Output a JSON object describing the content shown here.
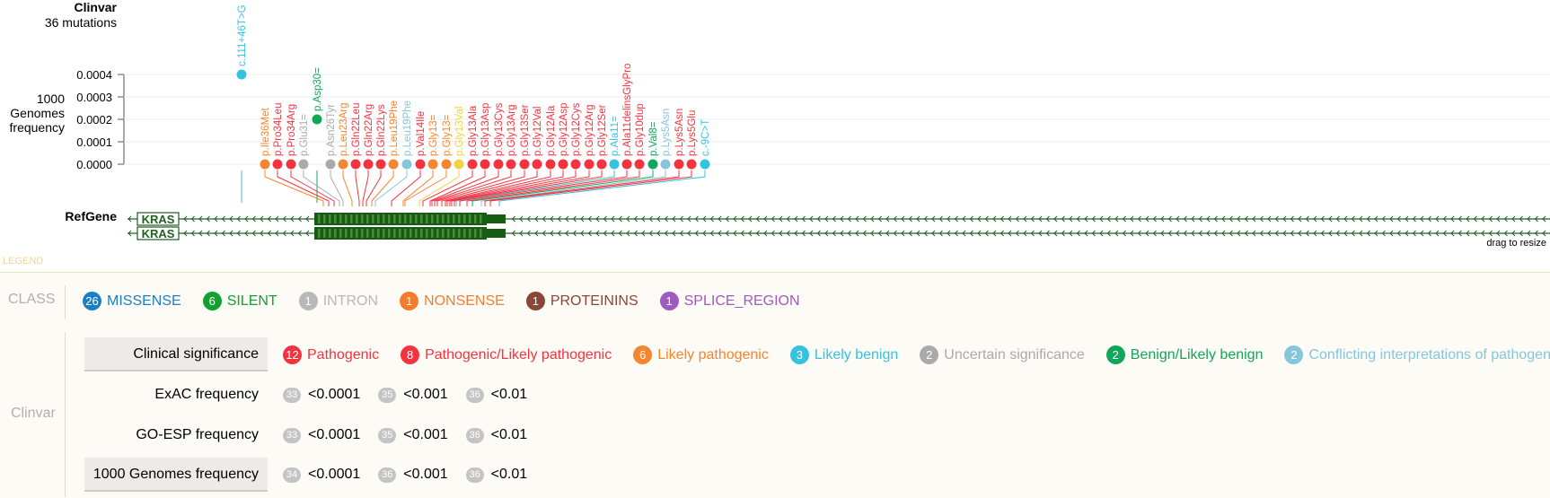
{
  "clinvar_track": {
    "title": "Clinvar",
    "subtitle": "36 mutations"
  },
  "frequency_axis": {
    "label_lines": [
      "1000",
      "Genomes",
      "frequency"
    ],
    "ticks": [
      "0.0004",
      "0.0003",
      "0.0002",
      "0.0001",
      "0.0000"
    ]
  },
  "refgene_track": {
    "title": "RefGene",
    "gene_name": "KRAS",
    "drag_hint": "drag to resize"
  },
  "legend_tag": "LEGEND",
  "colors": {
    "pathogenic": "#f5333f",
    "likely_pathogenic": "#f5852f",
    "likely_benign": "#35c2e0",
    "uncertain": "#aaaaaa",
    "benign_likely_benign": "#12a65a",
    "conflicting": "#87c6d9",
    "exon": "#155d12",
    "exon_pattern": "#4a8a3a",
    "gene_line": "#1f5f20"
  },
  "mutations": [
    {
      "label": "c.111+46T>G",
      "color": "#35c2e0",
      "freq": "0.0004"
    },
    {
      "label": "p.Asp30=",
      "color": "#12a65a",
      "freq": "0.0002"
    },
    {
      "label": "p.Ile36Met",
      "color": "#f5852f",
      "freq": "0.0000"
    },
    {
      "label": "p.Pro34Leu",
      "color": "#f5333f",
      "freq": "0.0000"
    },
    {
      "label": "p.Pro34Arg",
      "color": "#f5333f",
      "freq": "0.0000"
    },
    {
      "label": "p.Glu31=",
      "color": "#aaaaaa",
      "freq": "0.0000"
    },
    {
      "label": "p.Asn26Tyr",
      "color": "#aaaaaa",
      "freq": "0.0000"
    },
    {
      "label": "p.Leu23Arg",
      "color": "#f5852f",
      "freq": "0.0000"
    },
    {
      "label": "p.Gln22Leu",
      "color": "#f5333f",
      "freq": "0.0000"
    },
    {
      "label": "p.Gln22Arg",
      "color": "#f5333f",
      "freq": "0.0000"
    },
    {
      "label": "p.Gln22Lys",
      "color": "#f5333f",
      "freq": "0.0000"
    },
    {
      "label": "p.Leu19Phe",
      "color": "#f5852f",
      "freq": "0.0000"
    },
    {
      "label": "p.Leu19Phe",
      "color": "#87c6d9",
      "freq": "0.0000"
    },
    {
      "label": "p.Val14Ile",
      "color": "#f5333f",
      "freq": "0.0000"
    },
    {
      "label": "p.Gly13=",
      "color": "#f5852f",
      "freq": "0.0000"
    },
    {
      "label": "p.Gly13=",
      "color": "#f5852f",
      "freq": "0.0000"
    },
    {
      "label": "p.Gly13Val",
      "color": "#f5d142",
      "freq": "0.0000"
    },
    {
      "label": "p.Gly13Ala",
      "color": "#f5333f",
      "freq": "0.0000"
    },
    {
      "label": "p.Gly13Asp",
      "color": "#f5333f",
      "freq": "0.0000"
    },
    {
      "label": "p.Gly13Cys",
      "color": "#f5333f",
      "freq": "0.0000"
    },
    {
      "label": "p.Gly13Arg",
      "color": "#f5333f",
      "freq": "0.0000"
    },
    {
      "label": "p.Gly13Ser",
      "color": "#f5333f",
      "freq": "0.0000"
    },
    {
      "label": "p.Gly12Val",
      "color": "#f5333f",
      "freq": "0.0000"
    },
    {
      "label": "p.Gly12Ala",
      "color": "#f5333f",
      "freq": "0.0000"
    },
    {
      "label": "p.Gly12Asp",
      "color": "#f5333f",
      "freq": "0.0000"
    },
    {
      "label": "p.Gly12Cys",
      "color": "#f5333f",
      "freq": "0.0000"
    },
    {
      "label": "p.Gly12Arg",
      "color": "#f5333f",
      "freq": "0.0000"
    },
    {
      "label": "p.Gly12Ser",
      "color": "#f5333f",
      "freq": "0.0000"
    },
    {
      "label": "p.Ala11=",
      "color": "#35c2e0",
      "freq": "0.0000"
    },
    {
      "label": "p.Ala11delinsGlyPro",
      "color": "#f5333f",
      "freq": "0.0000"
    },
    {
      "label": "p.Gly10dup",
      "color": "#f5333f",
      "freq": "0.0000"
    },
    {
      "label": "p.Val8=",
      "color": "#12a65a",
      "freq": "0.0000"
    },
    {
      "label": "p.Lys5Asn",
      "color": "#87c6d9",
      "freq": "0.0000"
    },
    {
      "label": "p.Lys5Asn",
      "color": "#f5333f",
      "freq": "0.0000"
    },
    {
      "label": "p.Lys5Glu",
      "color": "#f5333f",
      "freq": "0.0000"
    },
    {
      "label": "c.-9C>T",
      "color": "#35c2e0",
      "freq": "0.0000"
    }
  ],
  "legend": {
    "class_label": "CLASS",
    "classes": [
      {
        "count": "26",
        "label": "MISSENSE",
        "color": "#1d7fc3"
      },
      {
        "count": "6",
        "label": "SILENT",
        "color": "#12a12f"
      },
      {
        "count": "1",
        "label": "INTRON",
        "color": "#b8b8b8"
      },
      {
        "count": "1",
        "label": "NONSENSE",
        "color": "#f57c2f"
      },
      {
        "count": "1",
        "label": "PROTEININS",
        "color": "#8a4737"
      },
      {
        "count": "1",
        "label": "SPLICE_REGION",
        "color": "#9c5bbd"
      }
    ],
    "clinvar_label": "Clinvar",
    "clinical_significance": {
      "label": "Clinical significance",
      "items": [
        {
          "count": "12",
          "label": "Pathogenic",
          "color": "#f5333f"
        },
        {
          "count": "8",
          "label": "Pathogenic/Likely pathogenic",
          "color": "#f5333f"
        },
        {
          "count": "6",
          "label": "Likely pathogenic",
          "color": "#f5852f"
        },
        {
          "count": "3",
          "label": "Likely benign",
          "color": "#35c2e0"
        },
        {
          "count": "2",
          "label": "Uncertain significance",
          "color": "#aaaaaa"
        },
        {
          "count": "2",
          "label": "Benign/Likely benign",
          "color": "#12a65a"
        },
        {
          "count": "2",
          "label": "Conflicting interpretations of pathogenicity",
          "color": "#87c6d9"
        }
      ]
    },
    "exac": {
      "label": "ExAC frequency",
      "items": [
        {
          "count": "33",
          "label": "<0.0001"
        },
        {
          "count": "35",
          "label": "<0.001"
        },
        {
          "count": "36",
          "label": "<0.01"
        }
      ]
    },
    "goesp": {
      "label": "GO-ESP frequency",
      "items": [
        {
          "count": "33",
          "label": "<0.0001"
        },
        {
          "count": "35",
          "label": "<0.001"
        },
        {
          "count": "36",
          "label": "<0.01"
        }
      ]
    },
    "g1000": {
      "label": "1000 Genomes frequency",
      "items": [
        {
          "count": "34",
          "label": "<0.0001"
        },
        {
          "count": "36",
          "label": "<0.001"
        },
        {
          "count": "36",
          "label": "<0.01"
        }
      ]
    }
  }
}
